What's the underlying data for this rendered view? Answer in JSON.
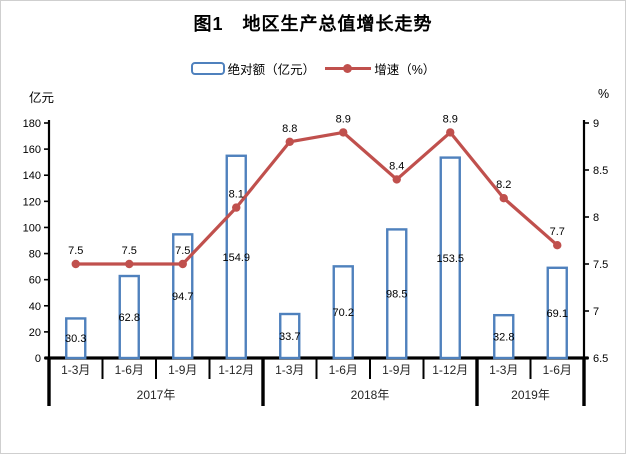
{
  "title": "图1　地区生产总值增长走势",
  "legend": {
    "bar_label": "绝对额（亿元）",
    "line_label": "增速（%）"
  },
  "axes": {
    "left_unit": "亿元",
    "right_unit": "%"
  },
  "colors": {
    "bar_border": "#4F81BD",
    "bar_fill": "#FFFFFF",
    "line": "#C0504D",
    "axis": "#000000",
    "label_text": "#000000",
    "category_text": "#262626"
  },
  "chart_data": {
    "type": "bar",
    "subtype": "bar+line dual axis",
    "title": "图1　地区生产总值增长走势",
    "categories": [
      "1-3月",
      "1-6月",
      "1-9月",
      "1-12月",
      "1-3月",
      "1-6月",
      "1-9月",
      "1-12月",
      "1-3月",
      "1-6月"
    ],
    "year_groups": [
      {
        "label": "2017年",
        "span": 4
      },
      {
        "label": "2018年",
        "span": 4
      },
      {
        "label": "2019年",
        "span": 2
      }
    ],
    "series": [
      {
        "name": "绝对额（亿元）",
        "type": "bar",
        "axis": "left",
        "values": [
          30.3,
          62.8,
          94.7,
          154.9,
          33.7,
          70.2,
          98.5,
          153.5,
          32.8,
          69.1
        ]
      },
      {
        "name": "增速（%）",
        "type": "line",
        "axis": "right",
        "values": [
          7.5,
          7.5,
          7.5,
          8.1,
          8.8,
          8.9,
          8.4,
          8.9,
          8.2,
          7.7
        ]
      }
    ],
    "left_axis": {
      "label": "亿元",
      "min": 0,
      "max": 180,
      "step": 20,
      "ticks": [
        0,
        20,
        40,
        60,
        80,
        100,
        120,
        140,
        160,
        180
      ]
    },
    "right_axis": {
      "label": "%",
      "min": 6.5,
      "max": 9,
      "step": 0.5,
      "ticks": [
        6.5,
        7,
        7.5,
        8,
        8.5,
        9
      ]
    },
    "grid": false,
    "legend_position": "top-center",
    "data_labels": "shown for both series"
  }
}
